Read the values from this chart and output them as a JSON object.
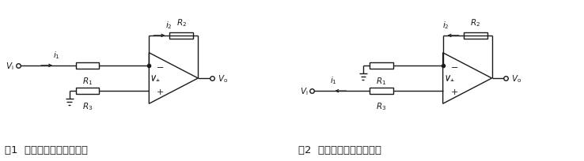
{
  "bg_color": "#ffffff",
  "line_color": "#1a1a1a",
  "fig_width": 7.38,
  "fig_height": 2.05,
  "caption1": "图1  反相放大器电路原理图",
  "caption2": "图2  同相放大器电路原理图",
  "caption_fontsize": 9.5,
  "label_fontsize": 7.5,
  "opamp_label_fontsize": 8.0
}
